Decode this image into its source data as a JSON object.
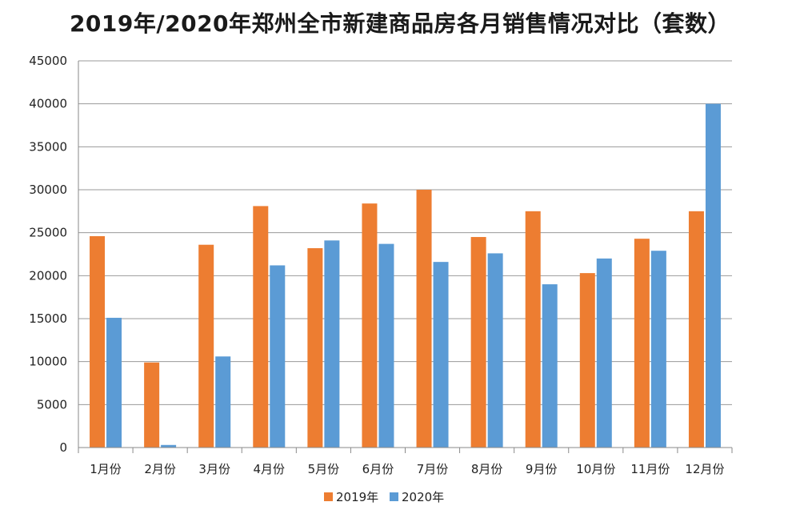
{
  "chart_data": {
    "type": "bar",
    "title": "2019年/2020年郑州全市新建商品房各月销售情况对比（套数）",
    "xlabel": "",
    "ylabel": "",
    "categories": [
      "1月份",
      "2月份",
      "3月份",
      "4月份",
      "5月份",
      "6月份",
      "7月份",
      "8月份",
      "9月份",
      "10月份",
      "11月份",
      "12月份"
    ],
    "series": [
      {
        "name": "2019年",
        "color": "#ED7D31",
        "values": [
          24600,
          9900,
          23600,
          28100,
          23200,
          28400,
          30000,
          24500,
          27500,
          20300,
          24300,
          27500
        ]
      },
      {
        "name": "2020年",
        "color": "#5B9BD5",
        "values": [
          15100,
          300,
          10600,
          21200,
          24100,
          23700,
          21600,
          22600,
          19000,
          22000,
          22900,
          40000
        ]
      }
    ],
    "ylim": [
      0,
      45000
    ],
    "yticks": [
      "0",
      "5000",
      "10000",
      "15000",
      "20000",
      "25000",
      "30000",
      "35000",
      "40000",
      "45000"
    ],
    "grid": true,
    "legend_position": "bottom"
  }
}
